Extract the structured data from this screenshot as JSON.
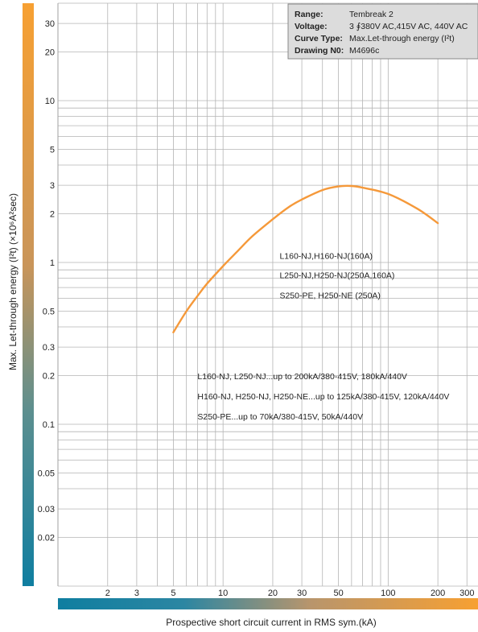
{
  "chart_data": {
    "type": "line",
    "xscale": "log",
    "yscale": "log",
    "xlim": [
      1,
      350
    ],
    "ylim": [
      0.01,
      40
    ],
    "grid": true,
    "xlabel": "Prospective short circuit current in RMS sym.(kA)",
    "ylabel": "Max. Let-through energy (I²t)  (×10⁶A²sec)",
    "x_ticks": [
      2,
      3,
      5,
      10,
      20,
      30,
      50,
      100,
      200,
      300
    ],
    "x_tick_labels": [
      "2",
      "3",
      "5",
      "10",
      "20",
      "30",
      "50",
      "100",
      "200",
      "300"
    ],
    "y_ticks": [
      0.02,
      0.03,
      0.05,
      0.1,
      0.2,
      0.3,
      0.5,
      1,
      2,
      3,
      5,
      10,
      20,
      30
    ],
    "y_tick_labels": [
      "0.02",
      "0.03",
      "0.05",
      "0.1",
      "0.2",
      "0.3",
      "0.5",
      "1",
      "2",
      "3",
      "5",
      "10",
      "20",
      "30"
    ],
    "series": [
      {
        "x": [
          5,
          6,
          7,
          8,
          10,
          12,
          15,
          20,
          25,
          30,
          40,
          50,
          60,
          70,
          100,
          150,
          200
        ],
        "y": [
          0.37,
          0.5,
          0.62,
          0.74,
          0.95,
          1.15,
          1.45,
          1.85,
          2.2,
          2.45,
          2.8,
          2.95,
          2.97,
          2.9,
          2.65,
          2.15,
          1.75
        ],
        "color": "#f5993a"
      }
    ],
    "annotations": [
      {
        "text": "L160-NJ,H160-NJ(160A)",
        "x": 22,
        "y": 1.05
      },
      {
        "text": "L250-NJ,H250-NJ(250A,160A)",
        "x": 22,
        "y": 0.8
      },
      {
        "text": "S250-PE, H250-NE (250A)",
        "x": 22,
        "y": 0.6
      },
      {
        "text": "L160-NJ, L250-NJ...up to 200kA/380-415V, 180kA/440V",
        "x": 7,
        "y": 0.19
      },
      {
        "text": "H160-NJ, H250-NJ, H250-NE...up to 125kA/380-415V, 120kA/440V",
        "x": 7,
        "y": 0.143
      },
      {
        "text": "S250-PE...up to 70kA/380-415V, 50kA/440V",
        "x": 7,
        "y": 0.107
      }
    ]
  },
  "info_box": {
    "range_label": "Range:",
    "range_value": "Tembreak 2",
    "voltage_label": "Voltage:",
    "voltage_value": "3 ∮380V AC,415V AC, 440V AC",
    "curve_label": "Curve Type:",
    "curve_value": "Max.Let-through energy (I²t)",
    "drawing_label": "Drawing N0:",
    "drawing_value": "M4696c"
  },
  "colors": {
    "gradient_orange": "#f7a032",
    "gradient_teal": "#0f7ea0",
    "curve": "#f5993a",
    "grid": "#b4b4b4"
  }
}
